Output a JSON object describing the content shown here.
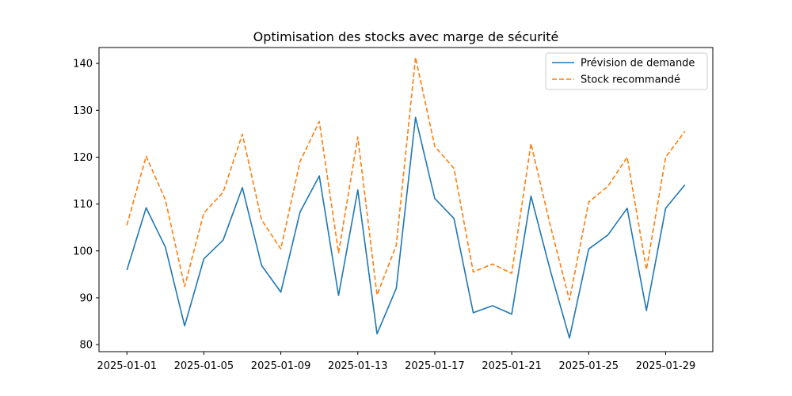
{
  "chart_data": {
    "type": "line",
    "title": "Optimisation des stocks avec marge de sécurité",
    "xlabel": "",
    "ylabel": "",
    "x": [
      "2025-01-01",
      "2025-01-02",
      "2025-01-03",
      "2025-01-04",
      "2025-01-05",
      "2025-01-06",
      "2025-01-07",
      "2025-01-08",
      "2025-01-09",
      "2025-01-10",
      "2025-01-11",
      "2025-01-12",
      "2025-01-13",
      "2025-01-14",
      "2025-01-15",
      "2025-01-16",
      "2025-01-17",
      "2025-01-18",
      "2025-01-19",
      "2025-01-20",
      "2025-01-21",
      "2025-01-22",
      "2025-01-23",
      "2025-01-24",
      "2025-01-25",
      "2025-01-26",
      "2025-01-27",
      "2025-01-28",
      "2025-01-29",
      "2025-01-30"
    ],
    "x_ticks": [
      "2025-01-01",
      "2025-01-05",
      "2025-01-09",
      "2025-01-13",
      "2025-01-17",
      "2025-01-21",
      "2025-01-25",
      "2025-01-29"
    ],
    "y_ticks": [
      80,
      90,
      100,
      110,
      120,
      130,
      140
    ],
    "ylim": [
      78.5,
      143.4
    ],
    "xlim": [
      "2024-12-30.55",
      "2025-01-31.45"
    ],
    "grid": false,
    "legend_position": "top-right",
    "series": [
      {
        "name": "Prévision de demande",
        "color": "#1f77b4",
        "style": "solid",
        "values": [
          95.9,
          109.2,
          100.8,
          84.0,
          98.3,
          102.3,
          113.5,
          96.9,
          91.2,
          108.3,
          116.0,
          90.5,
          113.0,
          82.3,
          92.0,
          128.5,
          111.2,
          106.9,
          86.8,
          88.3,
          86.5,
          111.7,
          95.9,
          81.4,
          100.4,
          103.4,
          109.1,
          87.3,
          109.1,
          114.1
        ]
      },
      {
        "name": "Stock recommandé",
        "color": "#ff7f0e",
        "style": "dashed",
        "values": [
          105.5,
          120.2,
          110.9,
          92.4,
          108.1,
          112.5,
          124.9,
          106.6,
          100.4,
          119.1,
          127.6,
          99.6,
          124.3,
          90.6,
          101.2,
          141.3,
          122.3,
          117.6,
          95.5,
          97.2,
          95.2,
          122.9,
          105.5,
          89.5,
          110.4,
          113.8,
          120.0,
          96.0,
          120.0,
          125.5
        ]
      }
    ]
  }
}
